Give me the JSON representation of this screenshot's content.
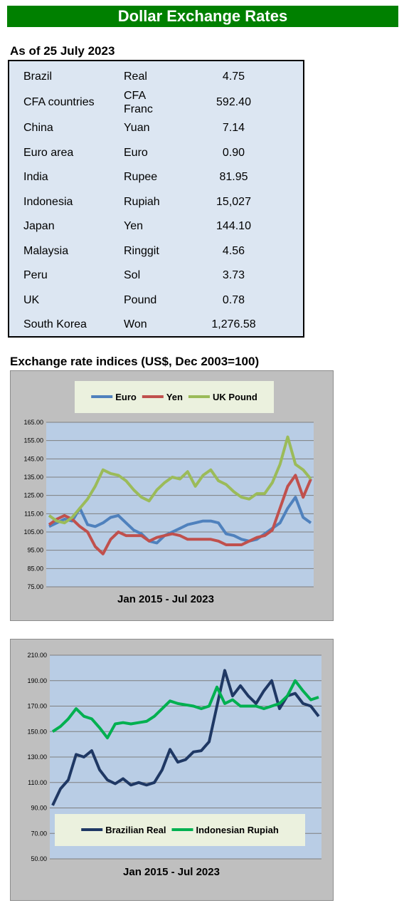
{
  "header": {
    "title": "Dollar Exchange Rates"
  },
  "table": {
    "title": "As of 25 July 2023",
    "rows": [
      [
        "Brazil",
        "Real",
        "4.75"
      ],
      [
        "CFA countries",
        "CFA Franc",
        "592.40"
      ],
      [
        "China",
        "Yuan",
        "7.14"
      ],
      [
        "Euro area",
        "Euro",
        "0.90"
      ],
      [
        "India",
        "Rupee",
        "81.95"
      ],
      [
        "Indonesia",
        "Rupiah",
        "15,027"
      ],
      [
        "Japan",
        "Yen",
        "144.10"
      ],
      [
        "Malaysia",
        "Ringgit",
        "4.56"
      ],
      [
        "Peru",
        "Sol",
        "3.73"
      ],
      [
        "UK",
        "Pound",
        "0.78"
      ],
      [
        "South Korea",
        "Won",
        "1,276.58"
      ]
    ]
  },
  "charts_title": "Exchange rate indices (US$, Dec 2003=100)",
  "chart_data": [
    {
      "type": "line",
      "x_label": "Jan 2015 - Jul 2023",
      "legend": "top",
      "grid": true,
      "categories": [
        null,
        null,
        null,
        null,
        null,
        null,
        null,
        null,
        null,
        null,
        null,
        null,
        null,
        null,
        null,
        null,
        null,
        null,
        null,
        null,
        null,
        null,
        null,
        null,
        null,
        null,
        null,
        null,
        null,
        null,
        null,
        null,
        null,
        null,
        null
      ],
      "ylim": [
        75,
        165
      ],
      "yticks": [
        {
          "value": 75,
          "label": "75.00"
        },
        {
          "value": 85,
          "label": "85.00"
        },
        {
          "value": 95,
          "label": "95.00"
        },
        {
          "value": 105,
          "label": "105.00"
        },
        {
          "value": 115,
          "label": "115.00"
        },
        {
          "value": 125,
          "label": "125.00"
        },
        {
          "value": 135,
          "label": "135.00"
        },
        {
          "value": 145,
          "label": "145.00"
        },
        {
          "value": 155,
          "label": "155.00"
        },
        {
          "value": 165,
          "label": "165.00"
        }
      ],
      "series": [
        {
          "name": "Euro",
          "color": "#4f81bd",
          "values": [
            108,
            110,
            112,
            111,
            118,
            109,
            108,
            110,
            113,
            114,
            110,
            106,
            104,
            100,
            99,
            103,
            105,
            107,
            109,
            110,
            111,
            111,
            110,
            104,
            103,
            101,
            100,
            101,
            104,
            107,
            110,
            118,
            124,
            113,
            110
          ]
        },
        {
          "name": "Yen",
          "color": "#c0504d",
          "values": [
            109,
            112,
            114,
            112,
            108,
            105,
            97,
            93,
            101,
            105,
            103,
            103,
            103,
            100,
            102,
            103,
            104,
            103,
            101,
            101,
            101,
            101,
            100,
            98,
            98,
            98,
            100,
            102,
            103,
            106,
            118,
            130,
            136,
            124,
            134
          ]
        },
        {
          "name": "UK Pound",
          "color": "#9bbb59",
          "values": [
            114,
            111,
            110,
            113,
            118,
            123,
            130,
            139,
            137,
            136,
            133,
            128,
            124,
            122,
            128,
            132,
            135,
            134,
            138,
            130,
            136,
            139,
            133,
            131,
            127,
            124,
            123,
            126,
            126,
            132,
            142,
            157,
            142,
            139,
            134
          ]
        }
      ]
    },
    {
      "type": "line",
      "x_label": "Jan 2015 - Jul 2023",
      "legend": "bottom",
      "grid": true,
      "categories": [
        null,
        null,
        null,
        null,
        null,
        null,
        null,
        null,
        null,
        null,
        null,
        null,
        null,
        null,
        null,
        null,
        null,
        null,
        null,
        null,
        null,
        null,
        null,
        null,
        null,
        null,
        null,
        null,
        null,
        null,
        null,
        null,
        null,
        null,
        null
      ],
      "ylim": [
        50,
        210
      ],
      "yticks": [
        {
          "value": 50,
          "label": "50.00"
        },
        {
          "value": 70,
          "label": "70.00"
        },
        {
          "value": 90,
          "label": "90.00"
        },
        {
          "value": 110,
          "label": "110.00"
        },
        {
          "value": 130,
          "label": "130.00"
        },
        {
          "value": 150,
          "label": "150.00"
        },
        {
          "value": 170,
          "label": "170.00"
        },
        {
          "value": 190,
          "label": "190.00"
        },
        {
          "value": 210,
          "label": "210.00"
        }
      ],
      "series": [
        {
          "name": "Brazilian Real",
          "color": "#1f3864",
          "values": [
            92,
            105,
            112,
            132,
            130,
            135,
            120,
            112,
            109,
            113,
            108,
            110,
            108,
            110,
            120,
            136,
            126,
            128,
            134,
            135,
            142,
            170,
            198,
            178,
            186,
            178,
            172,
            182,
            190,
            168,
            178,
            180,
            172,
            170,
            162
          ]
        },
        {
          "name": "Indonesian Rupiah",
          "color": "#00b050",
          "values": [
            150,
            154,
            160,
            168,
            162,
            160,
            153,
            145,
            156,
            157,
            156,
            157,
            158,
            162,
            168,
            174,
            172,
            171,
            170,
            168,
            170,
            185,
            172,
            175,
            170,
            170,
            170,
            168,
            170,
            172,
            178,
            190,
            182,
            175,
            177
          ]
        }
      ]
    }
  ]
}
